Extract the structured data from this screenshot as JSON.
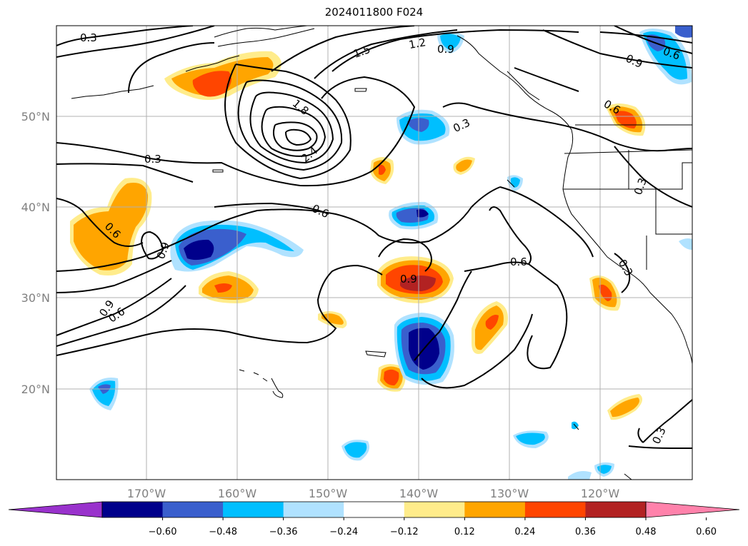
{
  "title": "2024011800 F024",
  "lon_labels": [
    "170°W",
    "160°W",
    "150°W",
    "140°W",
    "130°W",
    "120°W"
  ],
  "lat_labels": [
    "50°N",
    "40°N",
    "30°N",
    "20°N"
  ],
  "contour_labels": [
    "0.3",
    "1.5",
    "1.2",
    "0.9",
    "1.8",
    "2.4",
    "0.3",
    "0.6",
    "0.6",
    "0.6",
    "0.9",
    "0.9",
    "0.6",
    "0.9",
    "0.6",
    "0.6",
    "0.3",
    "0.3",
    "0.3",
    "0.3",
    "0.9"
  ],
  "colorbar": {
    "ticks": [
      "−0.60",
      "−0.48",
      "−0.36",
      "−0.24",
      "−0.12",
      "0.12",
      "0.24",
      "0.36",
      "0.48",
      "0.60"
    ],
    "colors": [
      "#9932cc",
      "#00008b",
      "#3a5fcd",
      "#00bfff",
      "#b0e2ff",
      "#ffffff",
      "#ffec8b",
      "#ffa500",
      "#ff4500",
      "#b22222",
      "#ff82ab"
    ]
  },
  "colors": {
    "grid": "#b0b0b0",
    "contour": "#000000",
    "coast": "#000000"
  }
}
